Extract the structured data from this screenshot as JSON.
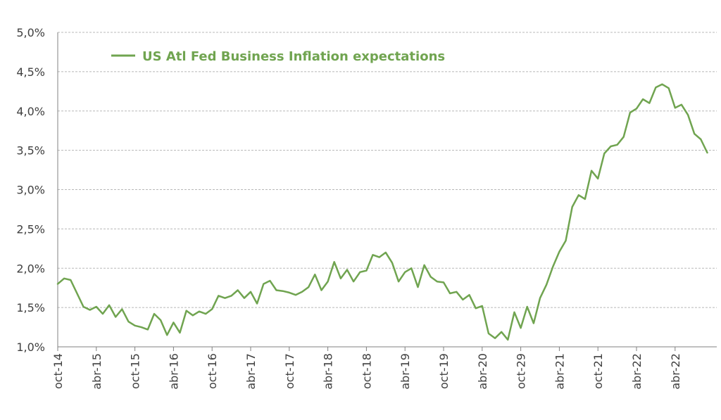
{
  "chart_data": {
    "type": "line",
    "title": "",
    "xlabel": "",
    "ylabel": "",
    "ylim": [
      1.0,
      5.0
    ],
    "yticks": [
      "1,0%",
      "1,5%",
      "2,0%",
      "2,5%",
      "3,0%",
      "3,5%",
      "4,0%",
      "4,5%",
      "5,0%"
    ],
    "xticks": [
      "oct-14",
      "abr-15",
      "oct-15",
      "abr-16",
      "oct-16",
      "abr-17",
      "oct-17",
      "abr-18",
      "oct-18",
      "abr-19",
      "oct-19",
      "abr-20",
      "oct-29",
      "abr-21",
      "oct-21",
      "abr-22",
      "abr-22"
    ],
    "grid": true,
    "legend_position": "top-left",
    "series": [
      {
        "name": "US Atl Fed Business Inflation expectations",
        "color": "#70a450",
        "values": [
          1.8,
          1.87,
          1.85,
          1.68,
          1.51,
          1.47,
          1.51,
          1.42,
          1.53,
          1.38,
          1.48,
          1.32,
          1.27,
          1.25,
          1.22,
          1.42,
          1.34,
          1.15,
          1.31,
          1.18,
          1.46,
          1.4,
          1.45,
          1.42,
          1.48,
          1.65,
          1.62,
          1.65,
          1.72,
          1.62,
          1.7,
          1.55,
          1.8,
          1.84,
          1.72,
          1.71,
          1.69,
          1.66,
          1.7,
          1.76,
          1.92,
          1.72,
          1.83,
          2.08,
          1.87,
          1.98,
          1.83,
          1.95,
          1.97,
          2.17,
          2.14,
          2.2,
          2.07,
          1.83,
          1.95,
          2.0,
          1.76,
          2.04,
          1.89,
          1.83,
          1.82,
          1.68,
          1.7,
          1.6,
          1.66,
          1.49,
          1.52,
          1.17,
          1.11,
          1.19,
          1.09,
          1.44,
          1.24,
          1.51,
          1.3,
          1.62,
          1.79,
          2.02,
          2.21,
          2.35,
          2.78,
          2.93,
          2.88,
          3.24,
          3.14,
          3.46,
          3.55,
          3.57,
          3.67,
          3.98,
          4.03,
          4.15,
          4.1,
          4.3,
          4.34,
          4.29,
          4.04,
          4.08,
          3.95,
          3.71,
          3.64,
          3.47
        ]
      }
    ]
  }
}
